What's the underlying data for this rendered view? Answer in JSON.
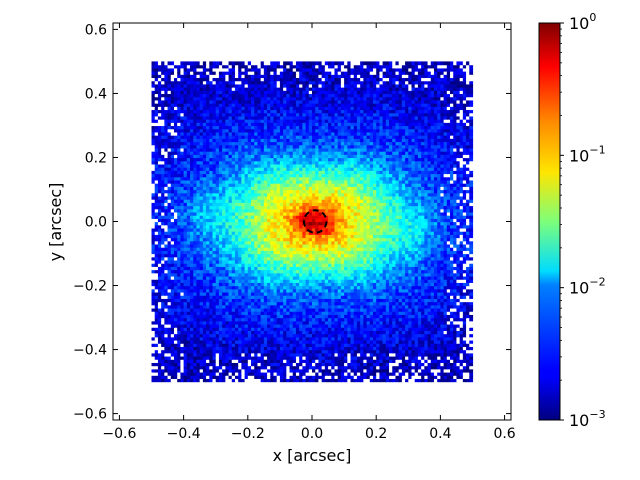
{
  "chart_data": {
    "type": "heatmap",
    "title": "",
    "xlabel": "x [arcsec]",
    "ylabel": "y [arcsec]",
    "xlim": [
      -0.62,
      0.62
    ],
    "ylim": [
      -0.62,
      0.62
    ],
    "xticks": [
      {
        "value": -0.6,
        "label": "−0.6"
      },
      {
        "value": -0.4,
        "label": "−0.4"
      },
      {
        "value": -0.2,
        "label": "−0.2"
      },
      {
        "value": 0.0,
        "label": "0.0"
      },
      {
        "value": 0.2,
        "label": "0.2"
      },
      {
        "value": 0.4,
        "label": "0.4"
      },
      {
        "value": 0.6,
        "label": "0.6"
      }
    ],
    "yticks": [
      {
        "value": -0.6,
        "label": "−0.6"
      },
      {
        "value": -0.4,
        "label": "−0.4"
      },
      {
        "value": -0.2,
        "label": "−0.2"
      },
      {
        "value": 0.0,
        "label": "0.0"
      },
      {
        "value": 0.2,
        "label": "0.2"
      },
      {
        "value": 0.4,
        "label": "0.4"
      },
      {
        "value": 0.6,
        "label": "0.6"
      }
    ],
    "image_extent": {
      "x": [
        -0.5,
        0.5
      ],
      "y": [
        -0.5,
        0.5
      ]
    },
    "peak_center": {
      "x": 0.01,
      "y": 0.0
    },
    "circle": {
      "center_x": 0.01,
      "center_y": 0.0,
      "radius": 0.035,
      "style": "dashed",
      "color": "#000000"
    },
    "colorbar": {
      "scale": "log",
      "range": [
        0.001,
        1
      ],
      "colormap": "jet",
      "ticks": [
        {
          "value": 1,
          "base": "10",
          "exp": "0"
        },
        {
          "value": 0.1,
          "base": "10",
          "exp": "−1"
        },
        {
          "value": 0.01,
          "base": "10",
          "exp": "−2"
        },
        {
          "value": 0.001,
          "base": "10",
          "exp": "−3"
        }
      ]
    },
    "grid": false,
    "legend": "none"
  }
}
